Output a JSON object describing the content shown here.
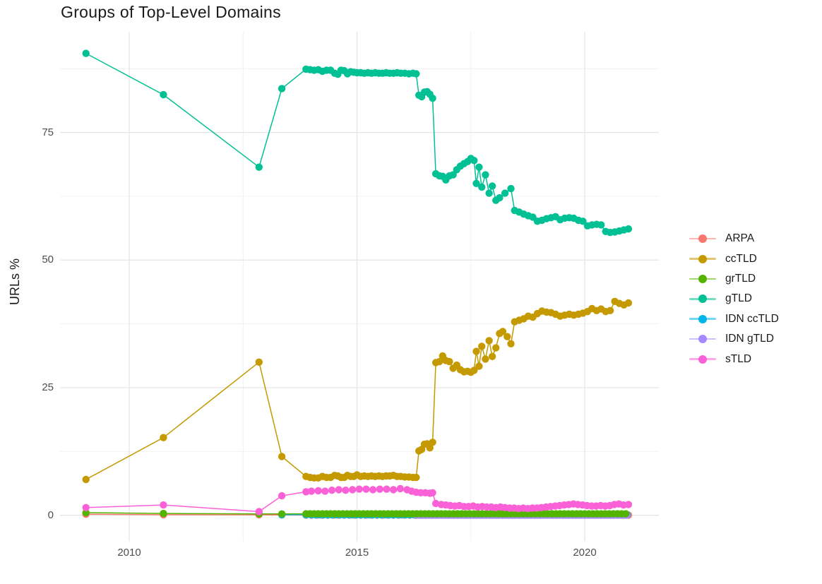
{
  "chart_data": {
    "type": "line",
    "title": "Groups of Top-Level Domains",
    "xlabel": "",
    "ylabel": "URLs %",
    "grid": true,
    "legend_position": "right",
    "xlim": [
      2008.55,
      2021.65
    ],
    "ylim": [
      -5.2,
      94.7
    ],
    "x_ticks": [
      2010,
      2015,
      2020
    ],
    "x_tick_labels": [
      "2010",
      "2015",
      "2020"
    ],
    "x_minor_ticks": [
      2012.5,
      2017.5
    ],
    "y_ticks": [
      0,
      25,
      50,
      75
    ],
    "y_tick_labels": [
      "0",
      "25",
      "50",
      "75"
    ],
    "y_minor_ticks": [
      12.5,
      37.5,
      62.5,
      87.5
    ],
    "series": [
      {
        "name": "ARPA",
        "color": "#F8766D",
        "points": [
          [
            2009.05,
            0.2
          ],
          [
            2010.75,
            0.1
          ],
          [
            2012.85,
            0.08
          ],
          [
            2013.35,
            0.05
          ]
        ],
        "flat": {
          "from": 2013.88,
          "to": 2020.96,
          "step": 0.12,
          "value": 0.03
        }
      },
      {
        "name": "ccTLD",
        "color": "#C49A00",
        "points": [
          [
            2009.05,
            7.0
          ],
          [
            2010.75,
            15.2
          ],
          [
            2012.85,
            30.0
          ],
          [
            2013.35,
            11.5
          ],
          [
            2013.88,
            7.6
          ],
          [
            2013.97,
            7.4
          ],
          [
            2014.06,
            7.3
          ],
          [
            2014.15,
            7.3
          ],
          [
            2014.24,
            7.6
          ],
          [
            2014.33,
            7.4
          ],
          [
            2014.42,
            7.4
          ],
          [
            2014.51,
            7.8
          ],
          [
            2014.58,
            7.7
          ],
          [
            2014.65,
            7.4
          ],
          [
            2014.72,
            7.4
          ],
          [
            2014.79,
            7.8
          ],
          [
            2014.86,
            7.6
          ],
          [
            2014.93,
            7.6
          ],
          [
            2015.0,
            7.9
          ],
          [
            2015.08,
            7.6
          ],
          [
            2015.16,
            7.7
          ],
          [
            2015.24,
            7.6
          ],
          [
            2015.32,
            7.7
          ],
          [
            2015.4,
            7.6
          ],
          [
            2015.48,
            7.7
          ],
          [
            2015.56,
            7.6
          ],
          [
            2015.64,
            7.7
          ],
          [
            2015.72,
            7.7
          ],
          [
            2015.8,
            7.8
          ],
          [
            2015.88,
            7.6
          ],
          [
            2015.96,
            7.6
          ],
          [
            2016.05,
            7.5
          ],
          [
            2016.14,
            7.5
          ],
          [
            2016.23,
            7.4
          ],
          [
            2016.3,
            7.4
          ],
          [
            2016.36,
            12.6
          ],
          [
            2016.42,
            12.9
          ],
          [
            2016.48,
            13.9
          ],
          [
            2016.54,
            14.0
          ],
          [
            2016.6,
            13.2
          ],
          [
            2016.66,
            14.3
          ],
          [
            2016.73,
            29.9
          ],
          [
            2016.81,
            30.1
          ],
          [
            2016.88,
            31.2
          ],
          [
            2016.95,
            30.3
          ],
          [
            2017.03,
            30.1
          ],
          [
            2017.11,
            28.8
          ],
          [
            2017.19,
            29.4
          ],
          [
            2017.27,
            28.5
          ],
          [
            2017.35,
            28.1
          ],
          [
            2017.43,
            28.2
          ],
          [
            2017.5,
            28.0
          ],
          [
            2017.57,
            28.4
          ],
          [
            2017.62,
            32.1
          ],
          [
            2017.68,
            29.2
          ],
          [
            2017.74,
            33.1
          ],
          [
            2017.82,
            30.6
          ],
          [
            2017.9,
            34.2
          ],
          [
            2017.97,
            31.1
          ],
          [
            2018.05,
            32.8
          ],
          [
            2018.13,
            35.6
          ],
          [
            2018.2,
            36.0
          ],
          [
            2018.3,
            35.0
          ],
          [
            2018.38,
            33.6
          ],
          [
            2018.46,
            37.9
          ],
          [
            2018.56,
            38.2
          ],
          [
            2018.66,
            38.5
          ],
          [
            2018.76,
            39.0
          ],
          [
            2018.86,
            38.8
          ],
          [
            2018.96,
            39.5
          ],
          [
            2019.06,
            40.0
          ],
          [
            2019.16,
            39.8
          ],
          [
            2019.26,
            39.7
          ],
          [
            2019.36,
            39.4
          ],
          [
            2019.46,
            39.0
          ],
          [
            2019.56,
            39.2
          ],
          [
            2019.66,
            39.4
          ],
          [
            2019.76,
            39.2
          ],
          [
            2019.86,
            39.4
          ],
          [
            2019.96,
            39.6
          ],
          [
            2020.06,
            39.9
          ],
          [
            2020.16,
            40.5
          ],
          [
            2020.26,
            40.1
          ],
          [
            2020.36,
            40.4
          ],
          [
            2020.46,
            39.9
          ],
          [
            2020.56,
            40.1
          ],
          [
            2020.66,
            41.9
          ],
          [
            2020.76,
            41.5
          ],
          [
            2020.86,
            41.2
          ],
          [
            2020.96,
            41.6
          ]
        ]
      },
      {
        "name": "grTLD",
        "color": "#53B400",
        "points": [
          [
            2009.05,
            0.5
          ],
          [
            2010.75,
            0.35
          ],
          [
            2012.85,
            0.25
          ],
          [
            2013.35,
            0.25
          ]
        ],
        "flat": {
          "from": 2013.88,
          "to": 2020.96,
          "step": 0.09,
          "value": 0.28
        }
      },
      {
        "name": "gTLD",
        "color": "#00C094",
        "points": [
          [
            2009.05,
            90.5
          ],
          [
            2010.75,
            82.4
          ],
          [
            2012.85,
            68.2
          ],
          [
            2013.35,
            83.6
          ],
          [
            2013.88,
            87.4
          ],
          [
            2013.97,
            87.3
          ],
          [
            2014.06,
            87.2
          ],
          [
            2014.15,
            87.3
          ],
          [
            2014.24,
            87.0
          ],
          [
            2014.33,
            87.2
          ],
          [
            2014.42,
            87.2
          ],
          [
            2014.51,
            86.6
          ],
          [
            2014.58,
            86.4
          ],
          [
            2014.65,
            87.2
          ],
          [
            2014.72,
            87.1
          ],
          [
            2014.79,
            86.5
          ],
          [
            2014.86,
            86.9
          ],
          [
            2014.93,
            86.8
          ],
          [
            2015.0,
            86.7
          ],
          [
            2015.08,
            86.7
          ],
          [
            2015.16,
            86.6
          ],
          [
            2015.24,
            86.7
          ],
          [
            2015.32,
            86.6
          ],
          [
            2015.4,
            86.7
          ],
          [
            2015.48,
            86.6
          ],
          [
            2015.56,
            86.6
          ],
          [
            2015.64,
            86.7
          ],
          [
            2015.72,
            86.6
          ],
          [
            2015.8,
            86.6
          ],
          [
            2015.88,
            86.7
          ],
          [
            2015.96,
            86.6
          ],
          [
            2016.05,
            86.6
          ],
          [
            2016.14,
            86.5
          ],
          [
            2016.23,
            86.6
          ],
          [
            2016.3,
            86.5
          ],
          [
            2016.36,
            82.3
          ],
          [
            2016.42,
            82.0
          ],
          [
            2016.48,
            82.9
          ],
          [
            2016.54,
            83.0
          ],
          [
            2016.6,
            82.5
          ],
          [
            2016.66,
            81.7
          ],
          [
            2016.73,
            66.9
          ],
          [
            2016.81,
            66.5
          ],
          [
            2016.88,
            66.4
          ],
          [
            2016.95,
            65.7
          ],
          [
            2017.03,
            66.5
          ],
          [
            2017.11,
            66.7
          ],
          [
            2017.19,
            67.7
          ],
          [
            2017.27,
            68.4
          ],
          [
            2017.35,
            68.9
          ],
          [
            2017.43,
            69.3
          ],
          [
            2017.5,
            69.9
          ],
          [
            2017.57,
            69.5
          ],
          [
            2017.62,
            65.0
          ],
          [
            2017.68,
            68.2
          ],
          [
            2017.74,
            64.3
          ],
          [
            2017.82,
            66.7
          ],
          [
            2017.9,
            63.1
          ],
          [
            2017.97,
            64.5
          ],
          [
            2018.05,
            61.7
          ],
          [
            2018.13,
            62.2
          ],
          [
            2018.25,
            63.1
          ],
          [
            2018.38,
            64.0
          ],
          [
            2018.46,
            59.7
          ],
          [
            2018.56,
            59.4
          ],
          [
            2018.66,
            59.0
          ],
          [
            2018.76,
            58.7
          ],
          [
            2018.86,
            58.4
          ],
          [
            2018.96,
            57.6
          ],
          [
            2019.06,
            57.8
          ],
          [
            2019.16,
            58.1
          ],
          [
            2019.26,
            58.3
          ],
          [
            2019.36,
            58.5
          ],
          [
            2019.46,
            57.9
          ],
          [
            2019.56,
            58.2
          ],
          [
            2019.66,
            58.3
          ],
          [
            2019.76,
            58.2
          ],
          [
            2019.86,
            57.8
          ],
          [
            2019.96,
            57.6
          ],
          [
            2020.06,
            56.7
          ],
          [
            2020.16,
            56.9
          ],
          [
            2020.26,
            57.0
          ],
          [
            2020.36,
            56.9
          ],
          [
            2020.46,
            55.6
          ],
          [
            2020.56,
            55.4
          ],
          [
            2020.66,
            55.5
          ],
          [
            2020.76,
            55.7
          ],
          [
            2020.86,
            55.9
          ],
          [
            2020.96,
            56.1
          ]
        ]
      },
      {
        "name": "IDN ccTLD",
        "color": "#00B6EB",
        "points": [
          [
            2013.35,
            0.1
          ],
          [
            2013.88,
            0.1
          ]
        ],
        "flat": {
          "from": 2014.0,
          "to": 2020.96,
          "step": 0.09,
          "value": 0.08
        }
      },
      {
        "name": "IDN gTLD",
        "color": "#A58AFF",
        "points": [],
        "flat": {
          "from": 2016.3,
          "to": 2020.96,
          "step": 0.07,
          "value": 0.0
        }
      },
      {
        "name": "sTLD",
        "color": "#FB61D7",
        "points": [
          [
            2009.05,
            1.5
          ],
          [
            2010.75,
            2.0
          ],
          [
            2012.85,
            0.7
          ],
          [
            2013.35,
            3.8
          ],
          [
            2013.88,
            4.6
          ],
          [
            2014.0,
            4.7
          ],
          [
            2014.15,
            4.8
          ],
          [
            2014.3,
            4.7
          ],
          [
            2014.45,
            4.9
          ],
          [
            2014.6,
            5.0
          ],
          [
            2014.75,
            4.9
          ],
          [
            2014.9,
            5.0
          ],
          [
            2015.05,
            5.1
          ],
          [
            2015.2,
            5.1
          ],
          [
            2015.35,
            5.0
          ],
          [
            2015.5,
            5.1
          ],
          [
            2015.65,
            5.1
          ],
          [
            2015.8,
            5.0
          ],
          [
            2015.95,
            5.2
          ],
          [
            2016.1,
            5.0
          ],
          [
            2016.2,
            4.7
          ],
          [
            2016.3,
            4.5
          ],
          [
            2016.4,
            4.4
          ],
          [
            2016.5,
            4.4
          ],
          [
            2016.6,
            4.3
          ],
          [
            2016.66,
            4.4
          ],
          [
            2016.73,
            2.3
          ],
          [
            2016.85,
            2.1
          ],
          [
            2016.95,
            2.0
          ],
          [
            2017.05,
            1.9
          ],
          [
            2017.15,
            1.8
          ],
          [
            2017.25,
            1.9
          ],
          [
            2017.35,
            1.7
          ],
          [
            2017.45,
            1.7
          ],
          [
            2017.55,
            1.8
          ],
          [
            2017.65,
            1.6
          ],
          [
            2017.75,
            1.7
          ],
          [
            2017.85,
            1.6
          ],
          [
            2017.95,
            1.6
          ],
          [
            2018.05,
            1.5
          ],
          [
            2018.15,
            1.6
          ],
          [
            2018.25,
            1.5
          ],
          [
            2018.35,
            1.4
          ],
          [
            2018.45,
            1.4
          ],
          [
            2018.55,
            1.3
          ],
          [
            2018.65,
            1.4
          ],
          [
            2018.75,
            1.3
          ],
          [
            2018.85,
            1.4
          ],
          [
            2018.95,
            1.4
          ],
          [
            2019.05,
            1.5
          ],
          [
            2019.15,
            1.6
          ],
          [
            2019.25,
            1.7
          ],
          [
            2019.35,
            1.8
          ],
          [
            2019.45,
            1.9
          ],
          [
            2019.55,
            2.0
          ],
          [
            2019.65,
            2.1
          ],
          [
            2019.75,
            2.2
          ],
          [
            2019.85,
            2.1
          ],
          [
            2019.95,
            2.0
          ],
          [
            2020.05,
            1.9
          ],
          [
            2020.15,
            1.8
          ],
          [
            2020.25,
            1.8
          ],
          [
            2020.35,
            1.9
          ],
          [
            2020.45,
            1.8
          ],
          [
            2020.55,
            1.9
          ],
          [
            2020.65,
            2.1
          ],
          [
            2020.75,
            2.2
          ],
          [
            2020.85,
            2.0
          ],
          [
            2020.96,
            2.1
          ]
        ]
      }
    ]
  }
}
